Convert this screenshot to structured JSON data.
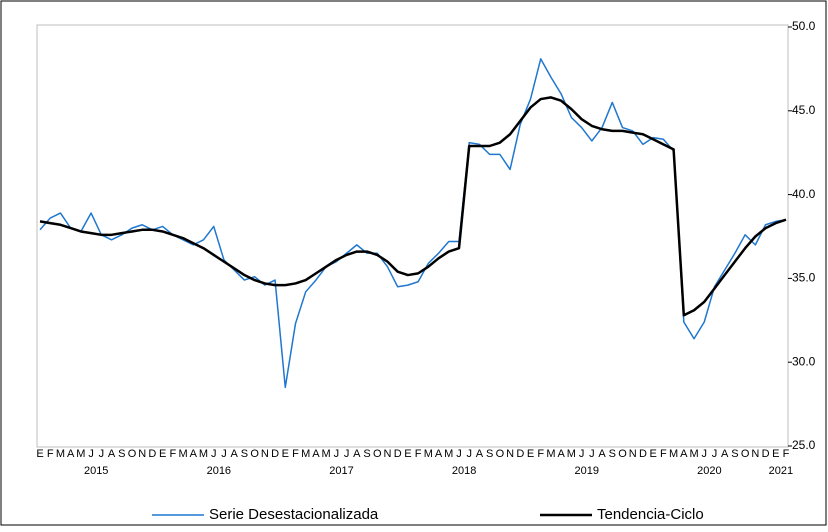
{
  "chart_data": {
    "type": "line",
    "categories": [
      "E",
      "F",
      "M",
      "A",
      "M",
      "J",
      "J",
      "A",
      "S",
      "O",
      "N",
      "D",
      "E",
      "F",
      "M",
      "A",
      "M",
      "J",
      "J",
      "A",
      "S",
      "O",
      "N",
      "D",
      "E",
      "F",
      "M",
      "A",
      "M",
      "J",
      "J",
      "A",
      "S",
      "O",
      "N",
      "D",
      "E",
      "F",
      "M",
      "A",
      "M",
      "J",
      "J",
      "A",
      "S",
      "O",
      "N",
      "D",
      "E",
      "F",
      "M",
      "A",
      "M",
      "J",
      "J",
      "A",
      "S",
      "O",
      "N",
      "D",
      "E",
      "F",
      "M",
      "A",
      "M",
      "J",
      "J",
      "A",
      "S",
      "O",
      "N",
      "D",
      "E",
      "F"
    ],
    "years": [
      "2015",
      "2016",
      "2017",
      "2018",
      "2019",
      "2020",
      "2021"
    ],
    "ylim": [
      25,
      50
    ],
    "yticks": [
      {
        "value": 25,
        "label": "25.0"
      },
      {
        "value": 30,
        "label": "30.0"
      },
      {
        "value": 35,
        "label": "35.0"
      },
      {
        "value": 40,
        "label": "40.0"
      },
      {
        "value": 45,
        "label": "45.0"
      },
      {
        "value": 50,
        "label": "50.0"
      }
    ],
    "series": [
      {
        "name": "Serie Desestacionalizada",
        "color": "#1f77d0",
        "width": 1.5,
        "values": [
          37.9,
          38.6,
          38.9,
          38.0,
          37.8,
          38.9,
          37.6,
          37.3,
          37.6,
          38.0,
          38.2,
          37.9,
          38.1,
          37.6,
          37.3,
          37.0,
          37.3,
          38.1,
          36.1,
          35.5,
          34.9,
          35.1,
          34.6,
          34.9,
          28.5,
          32.3,
          34.2,
          34.9,
          35.7,
          36.0,
          36.5,
          37.0,
          36.5,
          36.5,
          35.7,
          34.5,
          34.6,
          34.8,
          35.9,
          36.5,
          37.2,
          37.2,
          43.1,
          43.0,
          42.4,
          42.4,
          41.5,
          44.2,
          45.7,
          48.1,
          47.0,
          46.0,
          44.6,
          44.0,
          43.2,
          44.0,
          45.5,
          44.0,
          43.8,
          43.0,
          43.4,
          43.3,
          42.6,
          32.4,
          31.4,
          32.4,
          34.5,
          35.5,
          36.5,
          37.6,
          37.0,
          38.2,
          38.4,
          38.5
        ]
      },
      {
        "name": "Tendencia-Ciclo",
        "color": "#000000",
        "width": 2.5,
        "values": [
          38.4,
          38.3,
          38.2,
          38.0,
          37.8,
          37.7,
          37.6,
          37.6,
          37.7,
          37.8,
          37.9,
          37.9,
          37.8,
          37.6,
          37.4,
          37.1,
          36.8,
          36.4,
          36.0,
          35.6,
          35.2,
          34.9,
          34.7,
          34.6,
          34.6,
          34.7,
          34.9,
          35.3,
          35.7,
          36.1,
          36.4,
          36.6,
          36.6,
          36.4,
          36.0,
          35.4,
          35.2,
          35.3,
          35.7,
          36.2,
          36.6,
          36.8,
          42.9,
          42.9,
          42.9,
          43.1,
          43.6,
          44.4,
          45.2,
          45.7,
          45.8,
          45.6,
          45.1,
          44.5,
          44.1,
          43.9,
          43.8,
          43.8,
          43.7,
          43.6,
          43.3,
          43.0,
          42.7,
          32.8,
          33.1,
          33.6,
          34.4,
          35.2,
          36.0,
          36.8,
          37.5,
          38.0,
          38.3,
          38.5
        ]
      }
    ]
  }
}
